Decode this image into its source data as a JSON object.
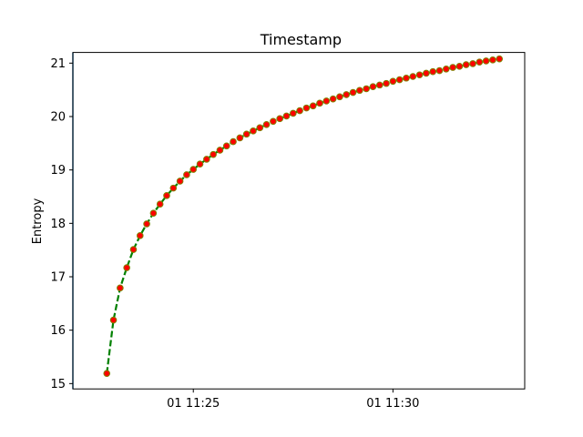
{
  "chart_data": {
    "type": "line",
    "title": "Timestamp",
    "xlabel": "",
    "ylabel": "Entropy",
    "x_ticks": [
      "01 11:25",
      "01 11:30"
    ],
    "y_ticks": [
      "15",
      "16",
      "17",
      "18",
      "19",
      "20",
      "21"
    ],
    "xlim": [
      "01 11:21:59",
      "01 11:33:18"
    ],
    "ylim": [
      14.9,
      21.2
    ],
    "grid": false,
    "vertical_line": {
      "x": "01 11:21:59",
      "color": "#1f77b4"
    },
    "series": [
      {
        "line_color": "#008000",
        "line_style": "dashed",
        "marker_color": "#ff0000",
        "marker_edge_color": "#808000",
        "x": [
          "01 11:22:50",
          "01 11:23:00",
          "01 11:23:10",
          "01 11:23:20",
          "01 11:23:30",
          "01 11:23:40",
          "01 11:23:50",
          "01 11:24:00",
          "01 11:24:10",
          "01 11:24:20",
          "01 11:24:30",
          "01 11:24:40",
          "01 11:24:50",
          "01 11:25:00",
          "01 11:25:10",
          "01 11:25:20",
          "01 11:25:30",
          "01 11:25:40",
          "01 11:25:50",
          "01 11:26:00",
          "01 11:26:10",
          "01 11:26:20",
          "01 11:26:30",
          "01 11:26:40",
          "01 11:26:50",
          "01 11:27:00",
          "01 11:27:10",
          "01 11:27:20",
          "01 11:27:30",
          "01 11:27:40",
          "01 11:27:50",
          "01 11:28:00",
          "01 11:28:10",
          "01 11:28:20",
          "01 11:28:30",
          "01 11:28:40",
          "01 11:28:50",
          "01 11:29:00",
          "01 11:29:10",
          "01 11:29:20",
          "01 11:29:30",
          "01 11:29:40",
          "01 11:29:50",
          "01 11:30:00",
          "01 11:30:10",
          "01 11:30:20",
          "01 11:30:30",
          "01 11:30:40",
          "01 11:30:50",
          "01 11:31:00",
          "01 11:31:10",
          "01 11:31:20",
          "01 11:31:30",
          "01 11:31:40",
          "01 11:31:50",
          "01 11:32:00",
          "01 11:32:10",
          "01 11:32:20",
          "01 11:32:30",
          "01 11:32:40"
        ],
        "y": [
          15.19,
          16.19,
          16.79,
          17.17,
          17.51,
          17.77,
          17.99,
          18.19,
          18.36,
          18.52,
          18.66,
          18.79,
          18.91,
          19.01,
          19.11,
          19.2,
          19.29,
          19.37,
          19.45,
          19.53,
          19.6,
          19.67,
          19.73,
          19.79,
          19.85,
          19.91,
          19.96,
          20.01,
          20.06,
          20.11,
          20.16,
          20.2,
          20.25,
          20.29,
          20.33,
          20.37,
          20.41,
          20.45,
          20.49,
          20.52,
          20.56,
          20.59,
          20.62,
          20.66,
          20.69,
          20.72,
          20.75,
          20.78,
          20.81,
          20.84,
          20.86,
          20.89,
          20.92,
          20.94,
          20.97,
          20.99,
          21.02,
          21.04,
          21.06,
          21.08
        ]
      }
    ]
  }
}
